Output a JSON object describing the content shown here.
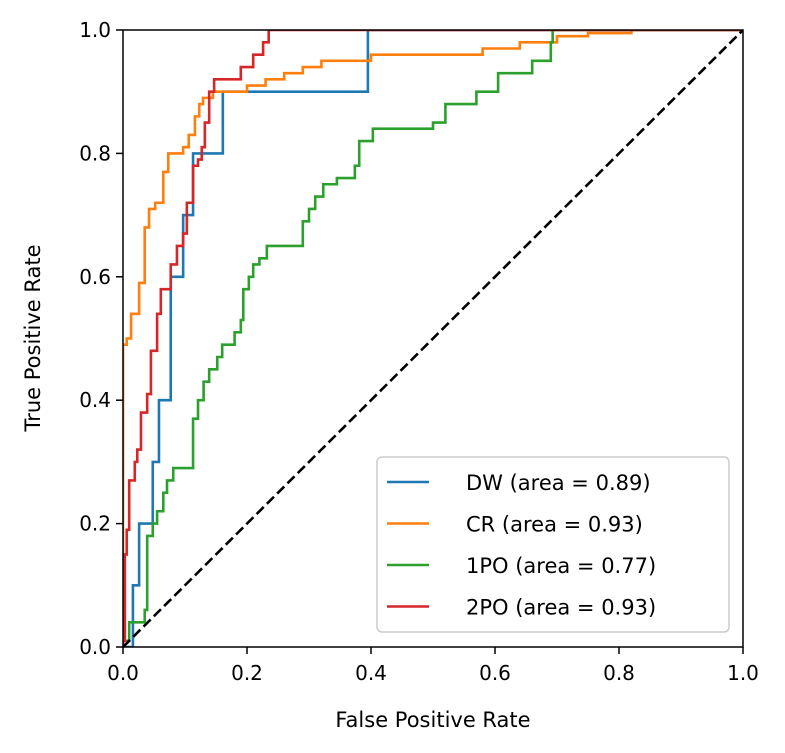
{
  "chart_data": {
    "type": "line",
    "xlabel": "False Positive Rate",
    "ylabel": "True Positive Rate",
    "xlim": [
      0.0,
      1.0
    ],
    "ylim": [
      0.0,
      1.0
    ],
    "xticks": [
      "0.0",
      "0.2",
      "0.4",
      "0.6",
      "0.8",
      "1.0"
    ],
    "yticks": [
      "0.0",
      "0.2",
      "0.4",
      "0.6",
      "0.8",
      "1.0"
    ],
    "grid": false,
    "legend_position": "lower-right",
    "diagonal": {
      "style": "dashed",
      "color": "#000000",
      "points": [
        [
          0,
          0
        ],
        [
          1,
          1
        ]
      ]
    },
    "series": [
      {
        "name": "DW (area = 0.89)",
        "color": "#1f77b4",
        "points": [
          [
            0,
            0
          ],
          [
            0.016,
            0
          ],
          [
            0.016,
            0.1
          ],
          [
            0.026,
            0.1
          ],
          [
            0.026,
            0.2
          ],
          [
            0.048,
            0.2
          ],
          [
            0.048,
            0.3
          ],
          [
            0.058,
            0.3
          ],
          [
            0.058,
            0.4
          ],
          [
            0.077,
            0.4
          ],
          [
            0.077,
            0.6
          ],
          [
            0.097,
            0.6
          ],
          [
            0.097,
            0.7
          ],
          [
            0.113,
            0.7
          ],
          [
            0.113,
            0.8
          ],
          [
            0.161,
            0.8
          ],
          [
            0.161,
            0.9
          ],
          [
            0.395,
            0.9
          ],
          [
            0.395,
            1.0
          ],
          [
            1.0,
            1.0
          ]
        ]
      },
      {
        "name": "CR (area = 0.93)",
        "color": "#ff7f0e",
        "points": [
          [
            0,
            0
          ],
          [
            0,
            0.49
          ],
          [
            0.006,
            0.49
          ],
          [
            0.006,
            0.5
          ],
          [
            0.013,
            0.5
          ],
          [
            0.013,
            0.54
          ],
          [
            0.026,
            0.54
          ],
          [
            0.026,
            0.59
          ],
          [
            0.035,
            0.59
          ],
          [
            0.035,
            0.68
          ],
          [
            0.042,
            0.68
          ],
          [
            0.042,
            0.71
          ],
          [
            0.052,
            0.71
          ],
          [
            0.052,
            0.72
          ],
          [
            0.065,
            0.72
          ],
          [
            0.065,
            0.77
          ],
          [
            0.073,
            0.77
          ],
          [
            0.073,
            0.8
          ],
          [
            0.097,
            0.8
          ],
          [
            0.097,
            0.81
          ],
          [
            0.106,
            0.81
          ],
          [
            0.106,
            0.83
          ],
          [
            0.116,
            0.83
          ],
          [
            0.116,
            0.86
          ],
          [
            0.123,
            0.86
          ],
          [
            0.123,
            0.88
          ],
          [
            0.129,
            0.88
          ],
          [
            0.129,
            0.89
          ],
          [
            0.145,
            0.89
          ],
          [
            0.145,
            0.9
          ],
          [
            0.2,
            0.9
          ],
          [
            0.2,
            0.91
          ],
          [
            0.23,
            0.91
          ],
          [
            0.23,
            0.92
          ],
          [
            0.26,
            0.92
          ],
          [
            0.26,
            0.93
          ],
          [
            0.29,
            0.93
          ],
          [
            0.29,
            0.94
          ],
          [
            0.32,
            0.94
          ],
          [
            0.32,
            0.95
          ],
          [
            0.4,
            0.95
          ],
          [
            0.4,
            0.96
          ],
          [
            0.58,
            0.96
          ],
          [
            0.58,
            0.97
          ],
          [
            0.64,
            0.97
          ],
          [
            0.64,
            0.98
          ],
          [
            0.7,
            0.98
          ],
          [
            0.7,
            0.99
          ],
          [
            0.75,
            0.99
          ],
          [
            0.75,
            0.995
          ],
          [
            0.82,
            0.995
          ],
          [
            0.82,
            1.0
          ],
          [
            1.0,
            1.0
          ]
        ]
      },
      {
        "name": "1PO (area = 0.77)",
        "color": "#2ca02c",
        "points": [
          [
            0,
            0
          ],
          [
            0,
            0.01
          ],
          [
            0.01,
            0.01
          ],
          [
            0.01,
            0.04
          ],
          [
            0.035,
            0.04
          ],
          [
            0.035,
            0.06
          ],
          [
            0.039,
            0.06
          ],
          [
            0.039,
            0.18
          ],
          [
            0.048,
            0.18
          ],
          [
            0.048,
            0.2
          ],
          [
            0.055,
            0.2
          ],
          [
            0.055,
            0.22
          ],
          [
            0.065,
            0.22
          ],
          [
            0.065,
            0.25
          ],
          [
            0.071,
            0.25
          ],
          [
            0.071,
            0.27
          ],
          [
            0.081,
            0.27
          ],
          [
            0.081,
            0.29
          ],
          [
            0.113,
            0.29
          ],
          [
            0.113,
            0.37
          ],
          [
            0.121,
            0.37
          ],
          [
            0.121,
            0.4
          ],
          [
            0.13,
            0.4
          ],
          [
            0.13,
            0.43
          ],
          [
            0.139,
            0.43
          ],
          [
            0.139,
            0.45
          ],
          [
            0.152,
            0.45
          ],
          [
            0.152,
            0.47
          ],
          [
            0.16,
            0.47
          ],
          [
            0.16,
            0.49
          ],
          [
            0.18,
            0.49
          ],
          [
            0.18,
            0.51
          ],
          [
            0.19,
            0.51
          ],
          [
            0.19,
            0.53
          ],
          [
            0.194,
            0.53
          ],
          [
            0.194,
            0.58
          ],
          [
            0.203,
            0.58
          ],
          [
            0.203,
            0.6
          ],
          [
            0.21,
            0.6
          ],
          [
            0.21,
            0.62
          ],
          [
            0.22,
            0.62
          ],
          [
            0.22,
            0.63
          ],
          [
            0.232,
            0.63
          ],
          [
            0.232,
            0.65
          ],
          [
            0.29,
            0.65
          ],
          [
            0.29,
            0.69
          ],
          [
            0.3,
            0.69
          ],
          [
            0.3,
            0.71
          ],
          [
            0.31,
            0.71
          ],
          [
            0.31,
            0.73
          ],
          [
            0.323,
            0.73
          ],
          [
            0.323,
            0.75
          ],
          [
            0.345,
            0.75
          ],
          [
            0.345,
            0.76
          ],
          [
            0.374,
            0.76
          ],
          [
            0.374,
            0.78
          ],
          [
            0.381,
            0.78
          ],
          [
            0.381,
            0.82
          ],
          [
            0.403,
            0.82
          ],
          [
            0.403,
            0.84
          ],
          [
            0.5,
            0.84
          ],
          [
            0.5,
            0.85
          ],
          [
            0.52,
            0.85
          ],
          [
            0.52,
            0.88
          ],
          [
            0.57,
            0.88
          ],
          [
            0.57,
            0.9
          ],
          [
            0.605,
            0.9
          ],
          [
            0.605,
            0.93
          ],
          [
            0.66,
            0.93
          ],
          [
            0.66,
            0.95
          ],
          [
            0.69,
            0.95
          ],
          [
            0.69,
            0.98
          ],
          [
            0.693,
            0.98
          ],
          [
            0.693,
            1.0
          ],
          [
            1.0,
            1.0
          ]
        ]
      },
      {
        "name": "2PO (area = 0.93)",
        "color": "#d62728",
        "points": [
          [
            0,
            0
          ],
          [
            0,
            0.01
          ],
          [
            0.003,
            0.01
          ],
          [
            0.003,
            0.15
          ],
          [
            0.006,
            0.15
          ],
          [
            0.006,
            0.19
          ],
          [
            0.01,
            0.19
          ],
          [
            0.01,
            0.27
          ],
          [
            0.019,
            0.27
          ],
          [
            0.019,
            0.3
          ],
          [
            0.023,
            0.3
          ],
          [
            0.023,
            0.32
          ],
          [
            0.029,
            0.32
          ],
          [
            0.029,
            0.38
          ],
          [
            0.039,
            0.38
          ],
          [
            0.039,
            0.41
          ],
          [
            0.045,
            0.41
          ],
          [
            0.045,
            0.48
          ],
          [
            0.055,
            0.48
          ],
          [
            0.055,
            0.54
          ],
          [
            0.061,
            0.54
          ],
          [
            0.061,
            0.58
          ],
          [
            0.077,
            0.58
          ],
          [
            0.077,
            0.62
          ],
          [
            0.087,
            0.62
          ],
          [
            0.087,
            0.65
          ],
          [
            0.097,
            0.65
          ],
          [
            0.097,
            0.67
          ],
          [
            0.103,
            0.67
          ],
          [
            0.103,
            0.72
          ],
          [
            0.113,
            0.72
          ],
          [
            0.113,
            0.78
          ],
          [
            0.121,
            0.78
          ],
          [
            0.121,
            0.79
          ],
          [
            0.127,
            0.79
          ],
          [
            0.127,
            0.81
          ],
          [
            0.132,
            0.81
          ],
          [
            0.132,
            0.85
          ],
          [
            0.139,
            0.85
          ],
          [
            0.139,
            0.9
          ],
          [
            0.147,
            0.9
          ],
          [
            0.147,
            0.92
          ],
          [
            0.19,
            0.92
          ],
          [
            0.19,
            0.94
          ],
          [
            0.21,
            0.94
          ],
          [
            0.21,
            0.96
          ],
          [
            0.226,
            0.96
          ],
          [
            0.226,
            0.98
          ],
          [
            0.235,
            0.98
          ],
          [
            0.235,
            1.0
          ],
          [
            1.0,
            1.0
          ]
        ]
      }
    ]
  }
}
